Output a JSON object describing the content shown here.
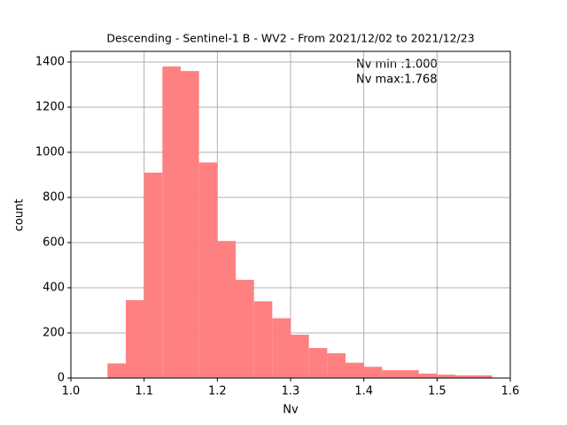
{
  "chart_data": {
    "type": "histogram",
    "title": "Descending - Sentinel-1 B - WV2 - From 2021/12/02 to 2021/12/23",
    "x_label": "Nv",
    "y_label": "count",
    "annotations": [
      "Nv min :1.000",
      "Nv max:1.768"
    ],
    "bins": [
      1.0,
      1.025,
      1.05,
      1.075,
      1.1,
      1.125,
      1.15,
      1.175,
      1.2,
      1.225,
      1.25,
      1.275,
      1.3,
      1.325,
      1.35,
      1.375,
      1.4,
      1.425,
      1.45,
      1.475,
      1.5,
      1.525,
      1.55,
      1.575,
      1.6
    ],
    "values": [
      0,
      0,
      65,
      345,
      910,
      1380,
      1360,
      955,
      607,
      435,
      340,
      265,
      192,
      133,
      110,
      68,
      50,
      35,
      35,
      20,
      15,
      12,
      12,
      2
    ],
    "color": "#ff8080",
    "xlim": [
      1.0,
      1.6
    ],
    "xticks": [
      {
        "value": 1.0,
        "label": "1.0"
      },
      1.1,
      1.2,
      1.3,
      1.4,
      1.5,
      {
        "value": 1.6,
        "label": "1.6"
      }
    ],
    "ylim": [
      0,
      1447
    ],
    "yticks": [
      0,
      200,
      400,
      600,
      800,
      1000,
      1200,
      1400
    ],
    "grid": true
  }
}
